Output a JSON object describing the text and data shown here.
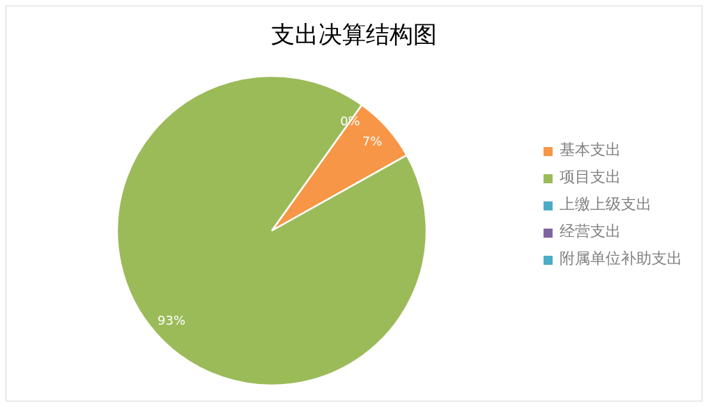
{
  "chart_data": {
    "type": "pie",
    "title": "支出决算结构图",
    "categories": [
      "基本支出",
      "项目支出",
      "上缴上级支出",
      "经营支出",
      "附属单位补助支出"
    ],
    "values": [
      7,
      93,
      0,
      0,
      0
    ],
    "colors": [
      "#f79646",
      "#9bbb59",
      "#4bacc6",
      "#8064a2",
      "#4bacc6"
    ],
    "value_labels": [
      "7%",
      "93%",
      "0%",
      null,
      null
    ],
    "legend": "right"
  }
}
